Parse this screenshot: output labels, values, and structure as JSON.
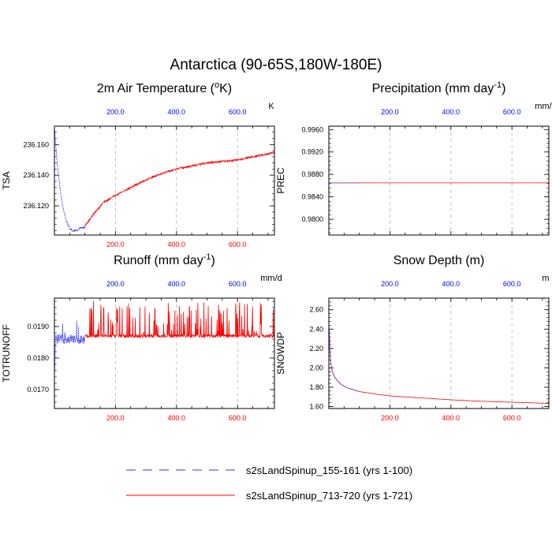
{
  "figure": {
    "title": "Antarctica (90-65S,180W-180E)"
  },
  "legend": {
    "placement": "bottom-center",
    "entries": [
      {
        "label": "s2sLandSpinup_155-161 (yrs 1-100)",
        "color": "#3333ff",
        "style": "dashed"
      },
      {
        "label": "s2sLandSpinup_713-720 (yrs 1-721)",
        "color": "#ff0000",
        "style": "solid"
      }
    ]
  },
  "colors": {
    "top_axis": "#0000ff",
    "bottom_axis": "#ff0000",
    "grid": "#b4b4b4"
  },
  "chart_data": [
    {
      "id": "tsa",
      "type": "line",
      "title_main": "2m Air Temperature (",
      "title_sup": "o",
      "title_end": "K)",
      "ylabel": "TSA",
      "units": "K",
      "xlim": [
        0,
        721
      ],
      "ylim": [
        236.101,
        236.172
      ],
      "x_ticks_bottom": [
        200,
        400,
        600
      ],
      "x_ticks_top": [
        200,
        400,
        600
      ],
      "y_ticks": [
        236.12,
        236.14,
        236.16
      ],
      "y_tick_labels": [
        "236.120",
        "236.140",
        "236.160"
      ],
      "bottom_labels_visible": true,
      "series": [
        {
          "name": "s2sLandSpinup_155-161 (yrs 1-100)",
          "x_range": [
            1,
            100
          ],
          "anchors": [
            [
              1,
              236.169
            ],
            [
              5,
              236.158
            ],
            [
              10,
              236.146
            ],
            [
              20,
              236.129
            ],
            [
              30,
              236.117
            ],
            [
              40,
              236.11
            ],
            [
              50,
              236.105
            ],
            [
              60,
              236.104
            ],
            [
              70,
              236.104
            ],
            [
              80,
              236.105
            ],
            [
              90,
              236.106
            ],
            [
              100,
              236.106
            ]
          ],
          "noise": 0.0007
        },
        {
          "name": "s2sLandSpinup_713-720 (yrs 1-721)",
          "x_range": [
            100,
            721
          ],
          "anchors": [
            [
              100,
              236.107
            ],
            [
              130,
              236.115
            ],
            [
              160,
              236.122
            ],
            [
              200,
              236.127
            ],
            [
              250,
              236.132
            ],
            [
              300,
              236.137
            ],
            [
              350,
              236.141
            ],
            [
              400,
              236.144
            ],
            [
              450,
              236.146
            ],
            [
              500,
              236.148
            ],
            [
              550,
              236.149
            ],
            [
              600,
              236.15
            ],
            [
              650,
              236.152
            ],
            [
              700,
              236.154
            ],
            [
              721,
              236.155
            ]
          ],
          "noise": 0.0006
        }
      ]
    },
    {
      "id": "prec",
      "type": "line",
      "title_main": "Precipitation (mm day",
      "title_sup": "-1",
      "title_end": ")",
      "ylabel": "PREC",
      "units": "mm/d",
      "xlim": [
        0,
        721
      ],
      "ylim": [
        0.9772,
        0.9966
      ],
      "x_ticks_bottom": [
        200,
        400,
        600
      ],
      "x_ticks_top": [
        200,
        400,
        600
      ],
      "y_ticks": [
        0.98,
        0.984,
        0.988,
        0.992,
        0.996
      ],
      "y_tick_labels": [
        "0.9800",
        "0.9840",
        "0.9880",
        "0.9920",
        "0.9960"
      ],
      "bottom_labels_visible": false,
      "series": [
        {
          "name": "s2sLandSpinup_155-161 (yrs 1-100)",
          "x_range": [
            1,
            100
          ],
          "anchors": [
            [
              1,
              0.9865
            ],
            [
              100,
              0.9865
            ]
          ],
          "noise": 0
        },
        {
          "name": "s2sLandSpinup_713-720 (yrs 1-721)",
          "x_range": [
            1,
            721
          ],
          "anchors": [
            [
              1,
              0.9865
            ],
            [
              721,
              0.9865
            ]
          ],
          "noise": 0
        }
      ]
    },
    {
      "id": "runoff",
      "type": "line",
      "title_main": "Runoff (mm day",
      "title_sup": "-1",
      "title_end": ")",
      "ylabel": "TOTRUNOFF",
      "units": "mm/d",
      "xlim": [
        0,
        721
      ],
      "ylim": [
        0.0164,
        0.0199
      ],
      "x_ticks_bottom": [
        200,
        400,
        600
      ],
      "x_ticks_top": [
        200,
        400,
        600
      ],
      "y_ticks": [
        0.017,
        0.018,
        0.019
      ],
      "y_tick_labels": [
        "0.0170",
        "0.0180",
        "0.0190"
      ],
      "bottom_labels_visible": true,
      "series": [
        {
          "name": "s2sLandSpinup_155-161 (yrs 1-100)",
          "x_range": [
            1,
            100
          ],
          "anchors": [
            [
              1,
              0.0175
            ],
            [
              3,
              0.0186
            ],
            [
              100,
              0.0186
            ]
          ],
          "noise": 0.00015,
          "spike_prob": 0.15,
          "spike_max": 0.0006
        },
        {
          "name": "s2sLandSpinup_713-720 (yrs 1-721)",
          "x_range": [
            100,
            721
          ],
          "anchors": [
            [
              100,
              0.0187
            ],
            [
              721,
              0.0187
            ]
          ],
          "noise": 5e-05,
          "spike_prob": 0.18,
          "spike_max": 0.0011
        }
      ]
    },
    {
      "id": "snowdp",
      "type": "line",
      "title_main": "Snow Depth (m)",
      "title_sup": "",
      "title_end": "",
      "ylabel": "SNOWDP",
      "units": "m",
      "xlim": [
        0,
        721
      ],
      "ylim": [
        1.58,
        2.72
      ],
      "x_ticks_bottom": [
        200,
        400,
        600
      ],
      "x_ticks_top": [
        200,
        400,
        600
      ],
      "y_ticks": [
        1.6,
        1.8,
        2.0,
        2.2,
        2.4,
        2.6
      ],
      "y_tick_labels": [
        "1.60",
        "1.80",
        "2.00",
        "2.20",
        "2.40",
        "2.60"
      ],
      "bottom_labels_visible": true,
      "series": [
        {
          "name": "s2sLandSpinup_155-161 (yrs 1-100)",
          "x_range": [
            1,
            100
          ],
          "anchors": [
            [
              1,
              2.42
            ],
            [
              3,
              2.2
            ],
            [
              6,
              2.06
            ],
            [
              10,
              1.98
            ],
            [
              15,
              1.93
            ],
            [
              20,
              1.9
            ],
            [
              30,
              1.86
            ],
            [
              40,
              1.83
            ],
            [
              50,
              1.81
            ],
            [
              60,
              1.795
            ],
            [
              70,
              1.785
            ],
            [
              80,
              1.775
            ],
            [
              90,
              1.765
            ],
            [
              100,
              1.755
            ]
          ],
          "noise": 0
        },
        {
          "name": "s2sLandSpinup_713-720 (yrs 1-721)",
          "x_range": [
            1,
            721
          ],
          "anchors": [
            [
              1,
              2.42
            ],
            [
              3,
              2.2
            ],
            [
              6,
              2.06
            ],
            [
              10,
              1.98
            ],
            [
              15,
              1.93
            ],
            [
              20,
              1.9
            ],
            [
              30,
              1.86
            ],
            [
              40,
              1.83
            ],
            [
              50,
              1.81
            ],
            [
              60,
              1.795
            ],
            [
              70,
              1.785
            ],
            [
              80,
              1.775
            ],
            [
              90,
              1.765
            ],
            [
              100,
              1.755
            ],
            [
              150,
              1.73
            ],
            [
              200,
              1.71
            ],
            [
              300,
              1.69
            ],
            [
              400,
              1.67
            ],
            [
              500,
              1.655
            ],
            [
              600,
              1.645
            ],
            [
              700,
              1.635
            ],
            [
              721,
              1.632
            ]
          ],
          "noise": 0
        }
      ]
    }
  ]
}
